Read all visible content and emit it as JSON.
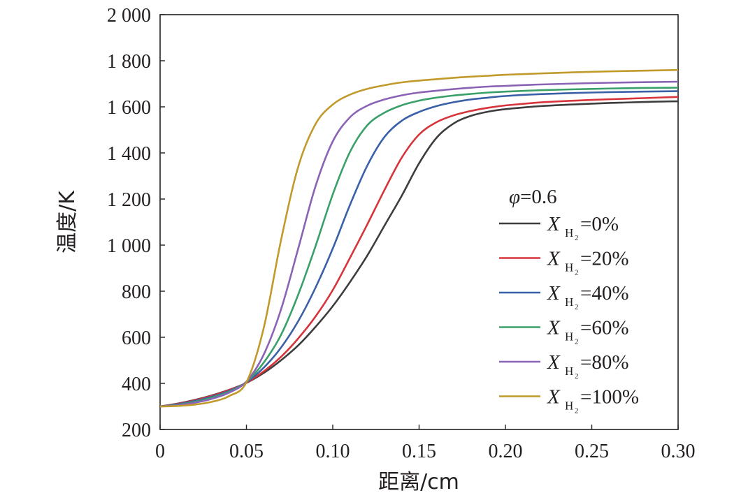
{
  "chart_data": {
    "type": "line",
    "title": "",
    "xlabel": "距离/cm",
    "ylabel": "温度/K",
    "xlim": [
      0,
      0.3
    ],
    "ylim": [
      200,
      2000
    ],
    "x_ticks": [
      "0",
      "0.05",
      "0.10",
      "0.15",
      "0.20",
      "0.25",
      "0.30"
    ],
    "y_ticks": [
      "200",
      "400",
      "600",
      "800",
      "1 000",
      "1 200",
      "1 400",
      "1 600",
      "1 800",
      "2 000"
    ],
    "grid": false,
    "legend": {
      "placement": "right",
      "title_symbol": "φ",
      "title_value": "=0.6",
      "entry_var": "X",
      "entry_sub": "H",
      "entry_sub2": "2"
    },
    "x": [
      0,
      0.01,
      0.02,
      0.03,
      0.04,
      0.05,
      0.06,
      0.07,
      0.08,
      0.09,
      0.1,
      0.11,
      0.12,
      0.13,
      0.14,
      0.15,
      0.16,
      0.17,
      0.18,
      0.19,
      0.2,
      0.22,
      0.25,
      0.28,
      0.3
    ],
    "series": [
      {
        "name": "=0%",
        "color": "#3d3d3d",
        "values": [
          300,
          312,
          328,
          348,
          372,
          402,
          445,
          500,
          565,
          645,
          735,
          840,
          955,
          1085,
          1215,
          1355,
          1465,
          1528,
          1561,
          1579,
          1590,
          1603,
          1614,
          1621,
          1624
        ]
      },
      {
        "name": "=20%",
        "color": "#d6343a",
        "values": [
          300,
          311,
          326,
          346,
          371,
          403,
          452,
          515,
          595,
          690,
          805,
          945,
          1090,
          1240,
          1380,
          1480,
          1533,
          1563,
          1582,
          1596,
          1606,
          1619,
          1630,
          1638,
          1643
        ]
      },
      {
        "name": "=40%",
        "color": "#3a60a8",
        "values": [
          300,
          309,
          323,
          342,
          367,
          405,
          468,
          555,
          670,
          815,
          985,
          1175,
          1345,
          1470,
          1540,
          1578,
          1603,
          1620,
          1632,
          1640,
          1647,
          1655,
          1662,
          1666,
          1668
        ]
      },
      {
        "name": "=60%",
        "color": "#3aa06a",
        "values": [
          300,
          307,
          320,
          338,
          364,
          407,
          490,
          610,
          785,
          995,
          1220,
          1405,
          1520,
          1575,
          1607,
          1627,
          1640,
          1649,
          1656,
          1662,
          1666,
          1672,
          1678,
          1682,
          1683
        ]
      },
      {
        "name": "=80%",
        "color": "#8b63b6",
        "values": [
          300,
          305,
          316,
          333,
          360,
          408,
          525,
          720,
          985,
          1255,
          1450,
          1555,
          1605,
          1632,
          1650,
          1662,
          1670,
          1677,
          1683,
          1688,
          1691,
          1697,
          1703,
          1707,
          1709
        ]
      },
      {
        "name": "=100%",
        "color": "#c19a2b",
        "values": [
          300,
          302,
          308,
          320,
          345,
          405,
          640,
          1020,
          1340,
          1525,
          1610,
          1653,
          1678,
          1694,
          1706,
          1714,
          1720,
          1726,
          1731,
          1735,
          1739,
          1745,
          1752,
          1757,
          1760
        ]
      }
    ]
  }
}
